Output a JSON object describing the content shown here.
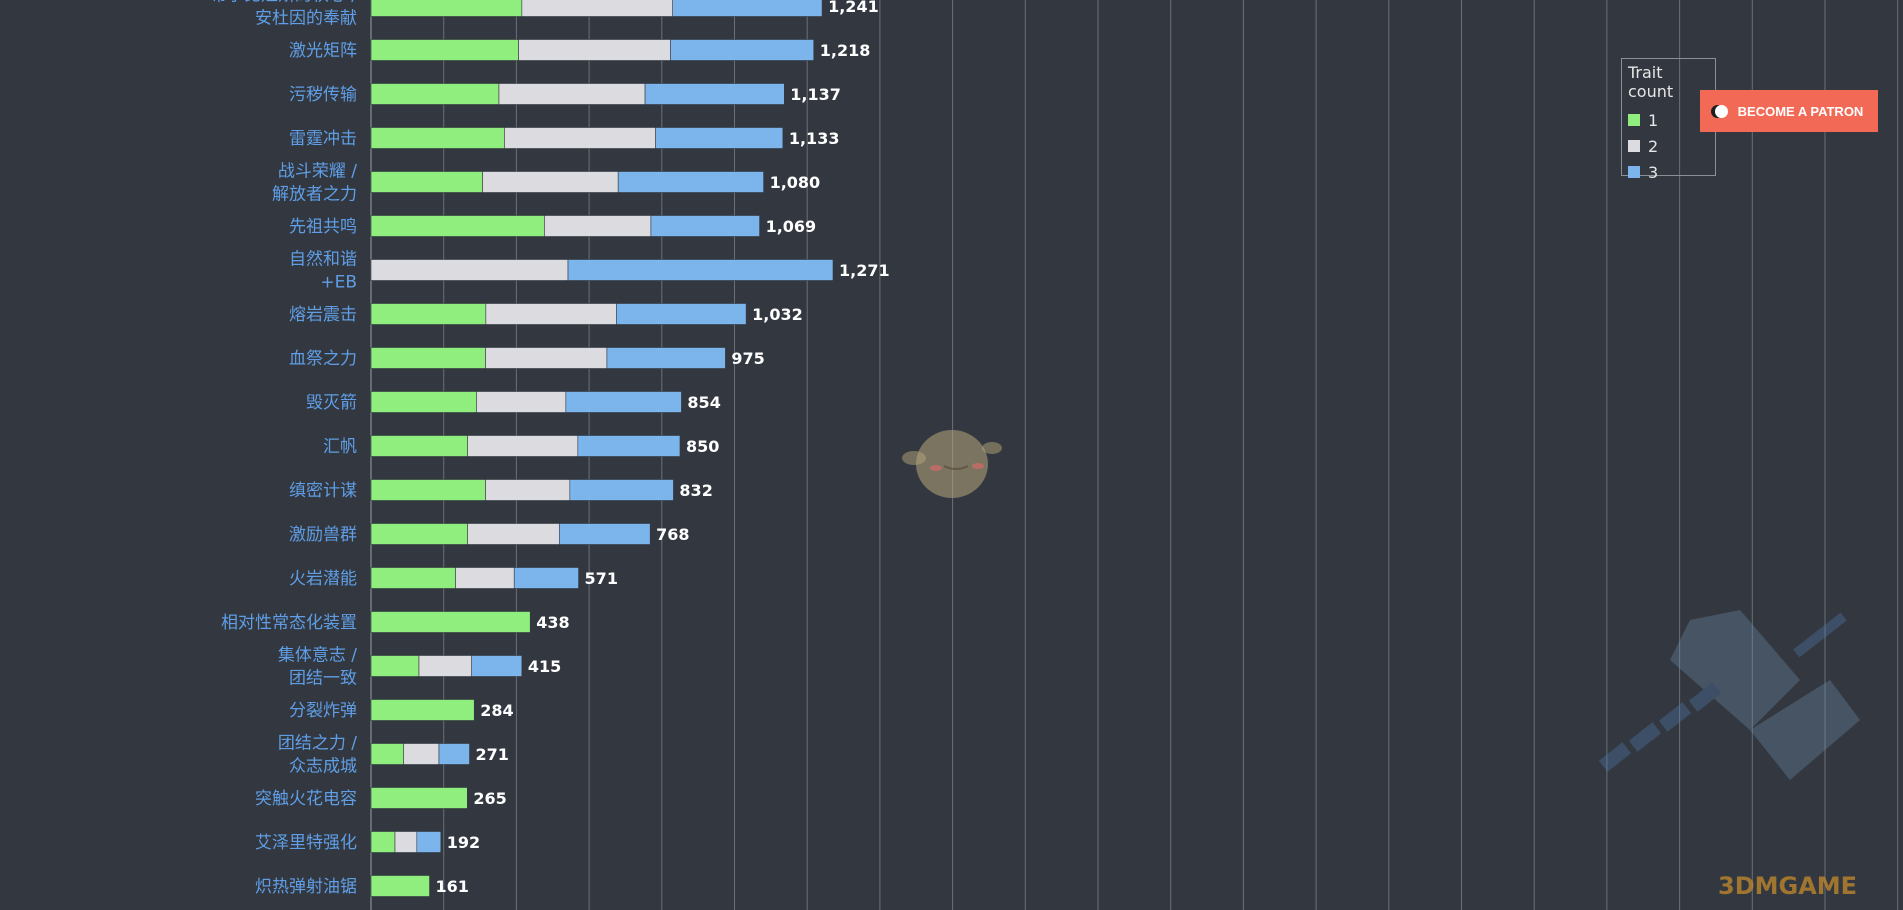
{
  "chart_data": {
    "type": "bar",
    "stacked": true,
    "orientation": "horizontal",
    "categories": [
      [
        "希尔比娅斯的秋心 /",
        "安杜因的奉献"
      ],
      [
        "激光矩阵"
      ],
      [
        "污秽传输"
      ],
      [
        "雷霆冲击"
      ],
      [
        "战斗荣耀 /",
        "解放者之力"
      ],
      [
        "先祖共鸣"
      ],
      [
        "自然和谐",
        "+EB"
      ],
      [
        "熔岩震击"
      ],
      [
        "血祭之力"
      ],
      [
        "毁灭箭"
      ],
      [
        "汇帆"
      ],
      [
        "缜密计谋"
      ],
      [
        "激励兽群"
      ],
      [
        "火岩潜能"
      ],
      [
        "相对性常态化装置"
      ],
      [
        "集体意志 /",
        "团结一致"
      ],
      [
        "分裂炸弹"
      ],
      [
        "团结之力 /",
        "众志成城"
      ],
      [
        "突触火花电容"
      ],
      [
        "艾泽里特强化"
      ],
      [
        "炽热弹射油锯"
      ]
    ],
    "series": [
      {
        "name": "1",
        "values": [
          415,
          406,
          352,
          367,
          307,
          477,
          0,
          316,
          315,
          290,
          266,
          315,
          266,
          233,
          438,
          132,
          284,
          90,
          265,
          66,
          161
        ]
      },
      {
        "name": "2",
        "values": [
          415,
          418,
          402,
          416,
          373,
          293,
          542,
          359,
          334,
          246,
          303,
          232,
          252,
          161,
          0,
          145,
          0,
          97,
          0,
          60,
          0
        ]
      },
      {
        "name": "3",
        "values": [
          411,
          394,
          383,
          350,
          400,
          299,
          729,
          357,
          326,
          318,
          281,
          285,
          250,
          177,
          0,
          138,
          0,
          84,
          0,
          66,
          0
        ]
      }
    ],
    "totals": [
      "1,241",
      "1,218",
      "1,137",
      "1,133",
      "1,080",
      "1,069",
      "1,271",
      "1,032",
      "975",
      "854",
      "850",
      "832",
      "768",
      "571",
      "438",
      "415",
      "284",
      "271",
      "265",
      "192",
      "161"
    ],
    "colors": {
      "1": "#90ee7e",
      "2": "#dcdce0",
      "3": "#7cb5ec"
    },
    "grid": true,
    "legend": {
      "title": "Trait count",
      "position": "top-right",
      "items": [
        "1",
        "2",
        "3"
      ]
    },
    "title": "",
    "xlabel": "",
    "ylabel": ""
  },
  "patron_button": {
    "label": "BECOME A PATRON"
  },
  "watermark": {
    "brand": "3DMGAME"
  }
}
